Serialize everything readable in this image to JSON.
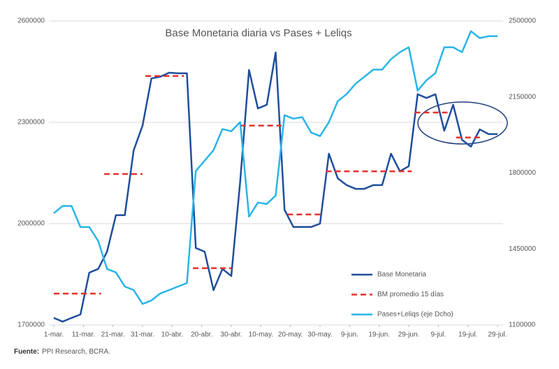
{
  "chart_data": {
    "type": "line",
    "title": "Base Monetaria diaria vs Pases + Leliqs",
    "source_label": "Fuente:",
    "source": "PPI Research, BCRA.",
    "x": [
      0,
      3,
      6,
      9,
      12,
      15,
      18,
      21,
      24,
      27,
      30,
      33,
      36,
      39,
      42,
      45,
      48,
      51,
      54,
      57,
      60,
      63,
      66,
      69,
      72,
      75,
      78,
      81,
      84,
      87,
      90,
      93,
      96,
      99,
      102,
      105,
      108,
      111,
      114,
      117,
      120,
      123,
      126,
      129,
      132,
      135,
      138,
      141,
      144,
      147,
      150
    ],
    "xlim": [
      0,
      150
    ],
    "xticks": [
      {
        "value": 0,
        "label": "1-mar."
      },
      {
        "value": 10,
        "label": "11-mar."
      },
      {
        "value": 20,
        "label": "21-mar."
      },
      {
        "value": 30,
        "label": "31-mar."
      },
      {
        "value": 40,
        "label": "10-abr."
      },
      {
        "value": 50,
        "label": "20-abr."
      },
      {
        "value": 60,
        "label": "30-abr."
      },
      {
        "value": 70,
        "label": "10-may."
      },
      {
        "value": 80,
        "label": "20-may."
      },
      {
        "value": 90,
        "label": "30-may."
      },
      {
        "value": 100,
        "label": "9-jun."
      },
      {
        "value": 110,
        "label": "19-jun."
      },
      {
        "value": 120,
        "label": "29-jun."
      },
      {
        "value": 130,
        "label": "9-jul."
      },
      {
        "value": 140,
        "label": "19-jul."
      },
      {
        "value": 150,
        "label": "29-jul."
      }
    ],
    "ylim": [
      1700000,
      2600000
    ],
    "yticks": [
      1700000,
      2000000,
      2300000,
      2600000
    ],
    "y2lim": [
      1100000,
      2500000
    ],
    "y2ticks": [
      1100000,
      1450000,
      1800000,
      2150000,
      2500000
    ],
    "grid": true,
    "series": [
      {
        "name": "Base Monetaria",
        "color": "#1f4e9c",
        "values": [
          1721000,
          1710000,
          1721000,
          1731000,
          1855000,
          1866000,
          1917000,
          2025000,
          2025000,
          2217000,
          2290000,
          2430000,
          2435000,
          2447000,
          2445000,
          2445000,
          1928000,
          1917000,
          1803000,
          1866000,
          1845000,
          2124000,
          2455000,
          2341000,
          2352000,
          2507000,
          2041000,
          1990000,
          1990000,
          1990000,
          2000000,
          2207000,
          2134000,
          2114000,
          2103000,
          2103000,
          2114000,
          2114000,
          2207000,
          2155000,
          2170000,
          2383000,
          2372000,
          2383000,
          2275000,
          2352000,
          2248000,
          2228000,
          2279000,
          2265000,
          2265000
        ]
      },
      {
        "name": "BM promedio 15 días",
        "color": "#e8312a",
        "dashed": true,
        "x": [
          0,
          16,
          17,
          17,
          30,
          31,
          31,
          44,
          46,
          47,
          60,
          62,
          63,
          77,
          78,
          79,
          91,
          92,
          92,
          121,
          122,
          122,
          134,
          135,
          136,
          145
        ],
        "values": [
          1793000,
          1793000,
          null,
          2147000,
          2147000,
          null,
          2437000,
          2437000,
          null,
          1868000,
          1868000,
          null,
          2290000,
          2290000,
          null,
          2027000,
          2027000,
          null,
          2155000,
          2155000,
          null,
          2329000,
          2329000,
          null,
          2255000,
          2255000
        ]
      },
      {
        "name": "Pases+Leliqs (eje Dcho)",
        "color": "#29b5e8",
        "axis": "y2",
        "values": [
          1615000,
          1648000,
          1648000,
          1551000,
          1551000,
          1487000,
          1358000,
          1342000,
          1277000,
          1261000,
          1197000,
          1213000,
          1245000,
          1261000,
          1277000,
          1293000,
          1809000,
          1857000,
          1905000,
          2002000,
          1992000,
          2034000,
          1599000,
          1664000,
          1657000,
          1696000,
          2066000,
          2050000,
          2057000,
          1986000,
          1970000,
          2034000,
          2131000,
          2163000,
          2211000,
          2243000,
          2276000,
          2276000,
          2324000,
          2356000,
          2379000,
          2179000,
          2227000,
          2260000,
          2379000,
          2379000,
          2356000,
          2453000,
          2421000,
          2430000,
          2430000
        ]
      }
    ]
  }
}
